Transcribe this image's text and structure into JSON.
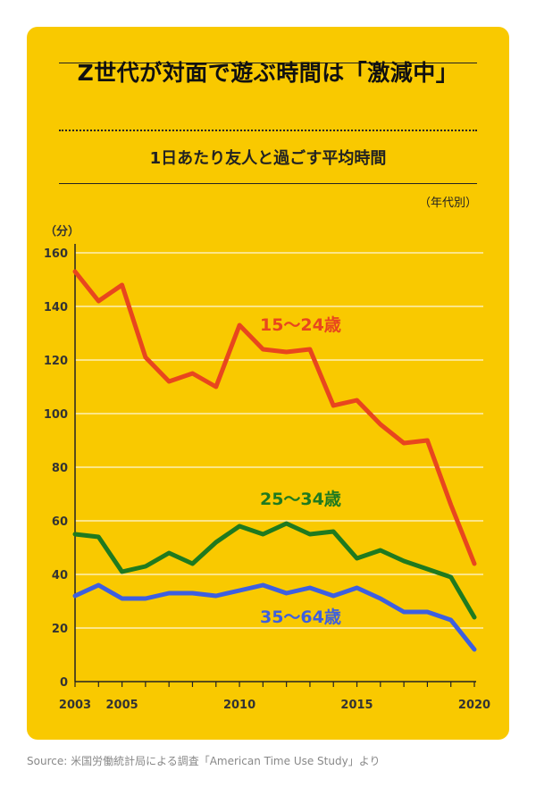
{
  "page": {
    "background": "#f9c900",
    "title": "Z世代が対面で遊ぶ時間は「激減中」",
    "subtitle": "1日あたり友人と過ごす平均時間",
    "group_note": "（年代別）",
    "source": "Source: 米国労働統計局による調査「American Time Use Study」より"
  },
  "chart_data": {
    "type": "line",
    "title": "Z世代が対面で遊ぶ時間は「激減中」",
    "subtitle": "1日あたり友人と過ごす平均時間",
    "ylabel": "（分）",
    "xlabel": "",
    "ylim": [
      0,
      160
    ],
    "yticks": [
      0,
      20,
      40,
      60,
      80,
      100,
      120,
      140,
      160
    ],
    "xlim": [
      2003,
      2020
    ],
    "xticks": [
      2003,
      2005,
      2010,
      2015,
      2020
    ],
    "grid": true,
    "x": [
      2003,
      2004,
      2005,
      2006,
      2007,
      2008,
      2009,
      2010,
      2011,
      2012,
      2013,
      2014,
      2015,
      2016,
      2017,
      2018,
      2019,
      2020
    ],
    "series": [
      {
        "name": "15〜24歳",
        "color": "#e8461e",
        "values": [
          153,
          142,
          148,
          121,
          112,
          115,
          110,
          133,
          124,
          123,
          124,
          103,
          105,
          96,
          89,
          90,
          66,
          44
        ]
      },
      {
        "name": "25〜34歳",
        "color": "#1f7a1f",
        "values": [
          55,
          54,
          41,
          43,
          48,
          44,
          52,
          58,
          55,
          59,
          55,
          56,
          46,
          49,
          45,
          42,
          39,
          24
        ]
      },
      {
        "name": "35〜64歳",
        "color": "#3d5fe0",
        "values": [
          32,
          36,
          31,
          31,
          33,
          33,
          32,
          34,
          36,
          33,
          35,
          32,
          35,
          31,
          26,
          26,
          23,
          12
        ]
      }
    ]
  }
}
